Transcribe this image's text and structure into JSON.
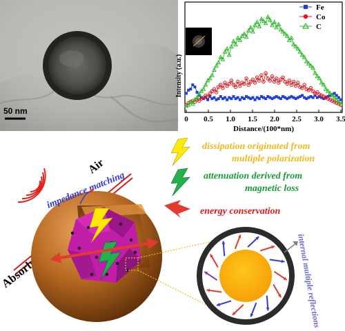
{
  "tem": {
    "scale_label": "50 nm"
  },
  "chart_data": {
    "type": "line",
    "xlabel": "Distance/(100*nm)",
    "ylabel": "Intensity (a.u.)",
    "xlim": [
      0,
      3.5
    ],
    "ylim": [
      0,
      1
    ],
    "x_ticks": [
      "0",
      "0.5",
      "1.0",
      "1.5",
      "2.0",
      "2.5",
      "3.0",
      "3.5"
    ],
    "legend_position": "top-right",
    "series": [
      {
        "name": "Fe",
        "color": "#1f3fd6",
        "marker": "square",
        "values": [
          0.16,
          0.19,
          0.2,
          0.24,
          0.22,
          0.17,
          0.14,
          0.12,
          0.11,
          0.12,
          0.1,
          0.13,
          0.11,
          0.12,
          0.1,
          0.11,
          0.13,
          0.11,
          0.12,
          0.1,
          0.12,
          0.11,
          0.13,
          0.11,
          0.12,
          0.1,
          0.12,
          0.11,
          0.13,
          0.12,
          0.11,
          0.12,
          0.1,
          0.12,
          0.11,
          0.13,
          0.12,
          0.11,
          0.13,
          0.12,
          0.11,
          0.12,
          0.13,
          0.12,
          0.11,
          0.13,
          0.12,
          0.11,
          0.12,
          0.13,
          0.12,
          0.11,
          0.12,
          0.13,
          0.14,
          0.12,
          0.11,
          0.12,
          0.13,
          0.12,
          0.14,
          0.12,
          0.13,
          0.12,
          0.11,
          0.12,
          0.13,
          0.14,
          0.15,
          0.16,
          0.14,
          0.12,
          0.1
        ]
      },
      {
        "name": "Co",
        "color": "#e0161c",
        "marker": "circle",
        "values": [
          0.05,
          0.07,
          0.08,
          0.09,
          0.08,
          0.1,
          0.09,
          0.11,
          0.12,
          0.14,
          0.13,
          0.16,
          0.18,
          0.2,
          0.17,
          0.22,
          0.24,
          0.21,
          0.26,
          0.23,
          0.25,
          0.28,
          0.24,
          0.22,
          0.27,
          0.23,
          0.26,
          0.25,
          0.3,
          0.24,
          0.27,
          0.29,
          0.26,
          0.31,
          0.28,
          0.33,
          0.27,
          0.35,
          0.3,
          0.28,
          0.32,
          0.27,
          0.3,
          0.26,
          0.29,
          0.31,
          0.27,
          0.25,
          0.28,
          0.24,
          0.27,
          0.23,
          0.26,
          0.22,
          0.21,
          0.24,
          0.2,
          0.19,
          0.21,
          0.18,
          0.16,
          0.17,
          0.15,
          0.14,
          0.13,
          0.12,
          0.11,
          0.1,
          0.09,
          0.08,
          0.07,
          0.06,
          0.05
        ]
      },
      {
        "name": "C",
        "color": "#2dbb2d",
        "marker": "triangle",
        "values": [
          0.04,
          0.05,
          0.08,
          0.06,
          0.1,
          0.12,
          0.15,
          0.18,
          0.2,
          0.24,
          0.28,
          0.3,
          0.33,
          0.38,
          0.42,
          0.45,
          0.5,
          0.48,
          0.55,
          0.58,
          0.52,
          0.6,
          0.65,
          0.62,
          0.68,
          0.66,
          0.7,
          0.72,
          0.69,
          0.75,
          0.78,
          0.74,
          0.8,
          0.83,
          0.79,
          0.86,
          0.84,
          0.82,
          0.88,
          0.85,
          0.8,
          0.83,
          0.78,
          0.81,
          0.76,
          0.74,
          0.72,
          0.7,
          0.66,
          0.68,
          0.62,
          0.6,
          0.58,
          0.55,
          0.52,
          0.5,
          0.46,
          0.44,
          0.42,
          0.4,
          0.35,
          0.32,
          0.3,
          0.26,
          0.24,
          0.2,
          0.18,
          0.16,
          0.14,
          0.12,
          0.1,
          0.08,
          0.06
        ]
      }
    ]
  },
  "diagram": {
    "air_label": "Air",
    "absorber_label": "Absorber",
    "impedance_label": "impedance matching",
    "legend": [
      {
        "text_line1": "dissipation originated from",
        "text_line2": "multiple polarization",
        "color": "#f2b91f"
      },
      {
        "text_line1": "attenuation derived from",
        "text_line2": "magnetic loss",
        "color": "#1a9a3a"
      },
      {
        "text_line1": "energy conservation",
        "text_line2": "",
        "color": "#dd1a1a"
      }
    ],
    "reflection_label": "internal multiple reflections"
  }
}
